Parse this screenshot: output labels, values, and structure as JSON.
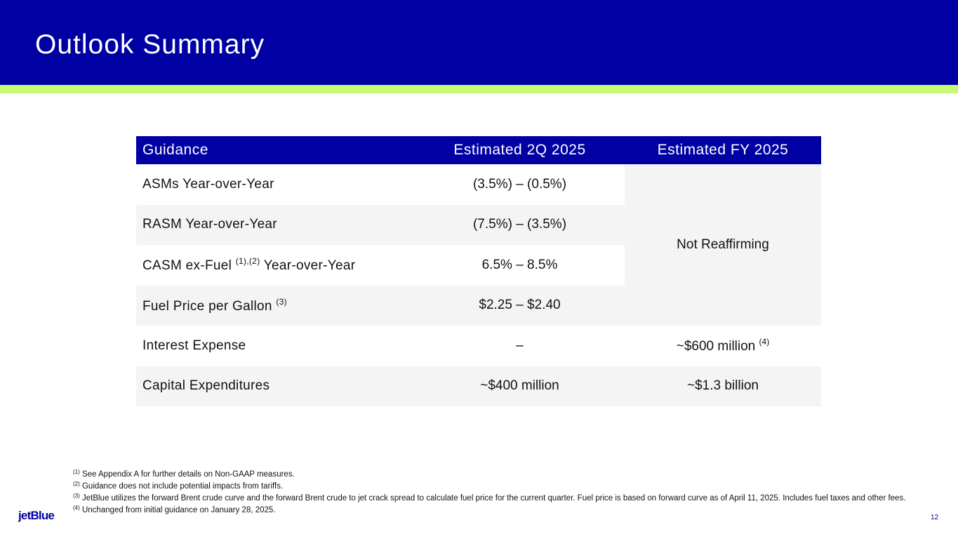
{
  "title": "Outlook Summary",
  "colors": {
    "brand_blue": "#0000a3",
    "accent_green": "#c3fc74",
    "row_gray": "#f4f4f4"
  },
  "table": {
    "headers": [
      "Guidance",
      "Estimated 2Q 2025",
      "Estimated FY 2025"
    ],
    "rows": [
      {
        "label": "ASMs Year-over-Year",
        "sup": "",
        "label_after": "",
        "q2": "(3.5%) – (0.5%)"
      },
      {
        "label": "RASM Year-over-Year",
        "sup": "",
        "label_after": "",
        "q2": "(7.5%) – (3.5%)"
      },
      {
        "label": "CASM ex-Fuel ",
        "sup": "(1),(2)",
        "label_after": " Year-over-Year",
        "q2": "6.5% – 8.5%"
      },
      {
        "label": "Fuel Price per Gallon ",
        "sup": "(3)",
        "label_after": "",
        "q2": "$2.25 – $2.40"
      },
      {
        "label": "Interest Expense",
        "sup": "",
        "label_after": "",
        "q2": "–",
        "fy": "~$600 million ",
        "fy_sup": "(4)"
      },
      {
        "label": "Capital Expenditures",
        "sup": "",
        "label_after": "",
        "q2": "~$400 million",
        "fy": "~$1.3 billion",
        "fy_sup": ""
      }
    ],
    "merged_fy": "Not Reaffirming"
  },
  "footnotes": [
    {
      "sup": "(1)",
      "text": " See Appendix A for further details on Non-GAAP measures."
    },
    {
      "sup": "(2)",
      "text": " Guidance does not include potential impacts from tariffs."
    },
    {
      "sup": "(3)",
      "text": " JetBlue utilizes the forward Brent crude curve and the forward Brent crude to jet crack spread to calculate fuel price for the current quarter. Fuel price is based on forward curve as of April 11, 2025. Includes fuel taxes and other fees."
    },
    {
      "sup": "(4)",
      "text": " Unchanged from initial guidance on January 28, 2025."
    }
  ],
  "logo": "jetBlue",
  "page_number": "12"
}
